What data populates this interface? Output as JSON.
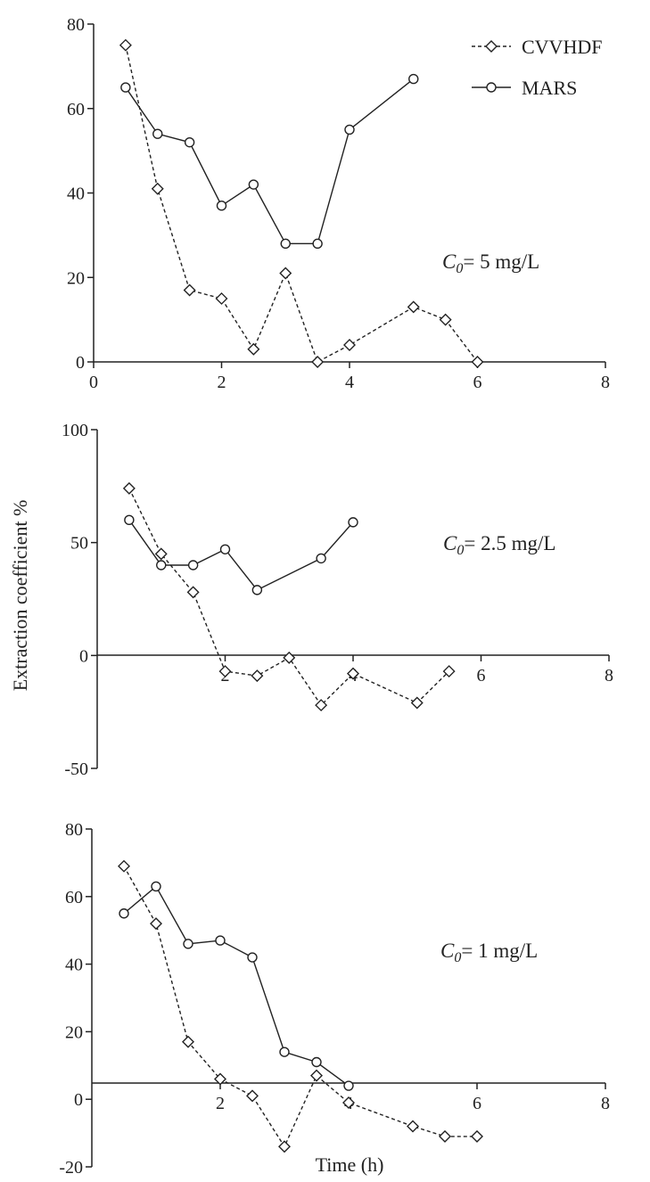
{
  "figure": {
    "ylabel": "Extraction coefficient %",
    "xlabel": "Time (h)"
  },
  "legend": [
    {
      "name": "CVVHDF",
      "marker": "diamond",
      "line": "dashed"
    },
    {
      "name": "MARS",
      "marker": "circle",
      "line": "solid"
    }
  ],
  "chart_data": [
    {
      "type": "line",
      "annotation": {
        "symbol": "C",
        "subscript": "0",
        "text": "= 5 mg/L"
      },
      "xlim": [
        0,
        8
      ],
      "ylim": [
        0,
        80
      ],
      "xticks": [
        0,
        2,
        4,
        6,
        8
      ],
      "yticks": [
        0,
        20,
        40,
        60,
        80
      ],
      "series": [
        {
          "name": "CVVHDF",
          "x": [
            0.5,
            1,
            1.5,
            2,
            2.5,
            3,
            3.5,
            4,
            5,
            5.5,
            6
          ],
          "y": [
            75,
            41,
            17,
            15,
            3,
            21,
            0,
            4,
            13,
            10,
            0
          ]
        },
        {
          "name": "MARS",
          "x": [
            0.5,
            1,
            1.5,
            2,
            2.5,
            3,
            3.5,
            4,
            5
          ],
          "y": [
            65,
            54,
            52,
            37,
            42,
            28,
            28,
            55,
            67
          ]
        }
      ]
    },
    {
      "type": "line",
      "annotation": {
        "symbol": "C",
        "subscript": "0",
        "text": "= 2.5 mg/L"
      },
      "xlim": [
        0,
        8
      ],
      "ylim": [
        -50,
        100
      ],
      "xticks": [
        2,
        4,
        6,
        8
      ],
      "yticks": [
        -50,
        0,
        50,
        100
      ],
      "series": [
        {
          "name": "CVVHDF",
          "x": [
            0.5,
            1,
            1.5,
            2,
            2.5,
            3,
            3.5,
            4,
            5,
            5.5
          ],
          "y": [
            74,
            45,
            28,
            -7,
            -9,
            -1,
            -22,
            -8,
            -21,
            -7
          ]
        },
        {
          "name": "MARS",
          "x": [
            0.5,
            1,
            1.5,
            2,
            2.5,
            3.5,
            4
          ],
          "y": [
            60,
            40,
            40,
            47,
            29,
            43,
            59
          ]
        }
      ]
    },
    {
      "type": "line",
      "annotation": {
        "symbol": "C",
        "subscript": "0",
        "text": "= 1 mg/L"
      },
      "xlim": [
        0,
        8
      ],
      "ylim": [
        -20,
        80
      ],
      "xticks": [
        2,
        4,
        6,
        8
      ],
      "yticks": [
        -20,
        0,
        20,
        40,
        60,
        80
      ],
      "series": [
        {
          "name": "CVVHDF",
          "x": [
            0.5,
            1,
            1.5,
            2,
            2.5,
            3,
            3.5,
            4,
            5,
            5.5,
            6
          ],
          "y": [
            69,
            52,
            17,
            6,
            1,
            -14,
            7,
            -1,
            -8,
            -11,
            -11
          ]
        },
        {
          "name": "MARS",
          "x": [
            0.5,
            1,
            1.5,
            2,
            2.5,
            3,
            3.5,
            4
          ],
          "y": [
            55,
            63,
            46,
            47,
            42,
            14,
            11,
            4
          ]
        }
      ]
    }
  ]
}
